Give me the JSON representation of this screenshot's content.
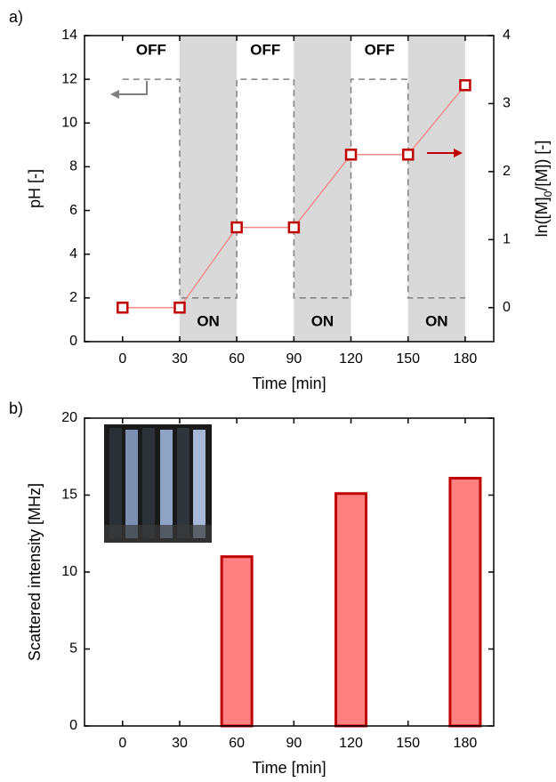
{
  "chart_data": [
    {
      "type": "line",
      "panel_label": "a)",
      "xlabel": "Time [min]",
      "ylabel": "pH [-]",
      "y2label": [
        "ln([M]",
        "0",
        "/[M]) [-]"
      ],
      "xlim": [
        -20,
        195
      ],
      "xticks": [
        0,
        30,
        60,
        90,
        120,
        150,
        180
      ],
      "ylim": [
        0,
        14
      ],
      "yticks": [
        0,
        2,
        4,
        6,
        8,
        10,
        12,
        14
      ],
      "y2lim": [
        -0.5,
        4
      ],
      "y2ticks": [
        0,
        1,
        2,
        3,
        4
      ],
      "shaded_regions": [
        [
          30,
          60
        ],
        [
          90,
          120
        ],
        [
          150,
          180
        ]
      ],
      "shade_color": "#d9d9d9",
      "annotations": [
        "OFF",
        "OFF",
        "OFF",
        "ON",
        "ON",
        "ON"
      ],
      "series": [
        {
          "color": "#808080",
          "style": "dashed",
          "x": [
            0,
            30,
            30,
            60,
            60,
            90,
            90,
            120,
            120,
            150,
            150,
            180
          ],
          "values": [
            12,
            12,
            2,
            2,
            12,
            12,
            2,
            2,
            12,
            12,
            2,
            2
          ]
        },
        {
          "color": "#c00000",
          "line_color": "#f58a8a",
          "marker": "square",
          "axis": "y2",
          "x": [
            0,
            30,
            60,
            90,
            120,
            150,
            180
          ],
          "values": [
            0,
            0,
            1.18,
            1.18,
            2.25,
            2.25,
            3.27
          ]
        }
      ]
    },
    {
      "type": "bar",
      "panel_label": "b)",
      "xlabel": "Time [min]",
      "ylabel": "Scattered intensity [MHz]",
      "xlim": [
        -20,
        195
      ],
      "xticks": [
        0,
        30,
        60,
        90,
        120,
        150,
        180
      ],
      "ylim": [
        0,
        20
      ],
      "yticks": [
        0,
        5,
        10,
        15,
        20
      ],
      "x": [
        0,
        30,
        60,
        90,
        120,
        150,
        180
      ],
      "values": [
        0,
        0,
        11,
        0,
        15.1,
        0,
        16.1
      ],
      "color": "#ff8080",
      "edge_color": "#c00000"
    }
  ]
}
